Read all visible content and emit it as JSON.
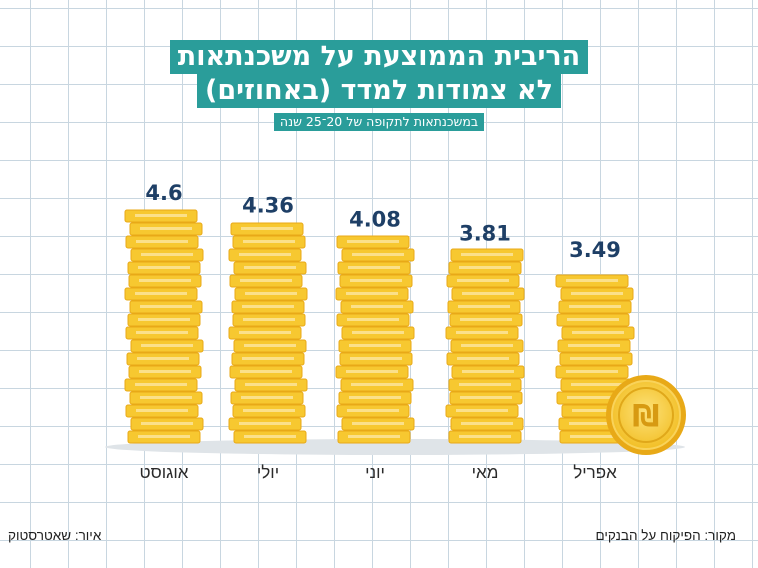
{
  "header": {
    "title_line1": "הריבית הממוצעת על משכנתאות",
    "title_line2": "לא צמודות למדד (באחוזים)",
    "subtitle": "במשכנתאות לתקופה של 20־25 שנה"
  },
  "footer": {
    "credit": "איור: שאטרסטוק",
    "source": "מקור: הפיקוח על הבנקים"
  },
  "colors": {
    "accent": "#2a9d9a",
    "coin": "#f7c830",
    "coin_edge": "#e8a917",
    "label": "#1e3f66"
  },
  "chart_data": {
    "type": "bar",
    "title": "הריבית הממוצעת על משכנתאות לא צמודות למדד (באחוזים)",
    "subtitle": "במשכנתאות לתקופה של 20־25 שנה",
    "categories": [
      "אוגוסט",
      "יולי",
      "יוני",
      "מאי",
      "אפריל"
    ],
    "values": [
      4.6,
      4.36,
      4.08,
      3.81,
      3.49
    ],
    "value_labels": [
      "4.6",
      "4.36",
      "4.08",
      "3.81",
      "3.49"
    ],
    "xlabel": "",
    "ylabel": "",
    "ylim": [
      0,
      5.5
    ],
    "grid": true
  }
}
